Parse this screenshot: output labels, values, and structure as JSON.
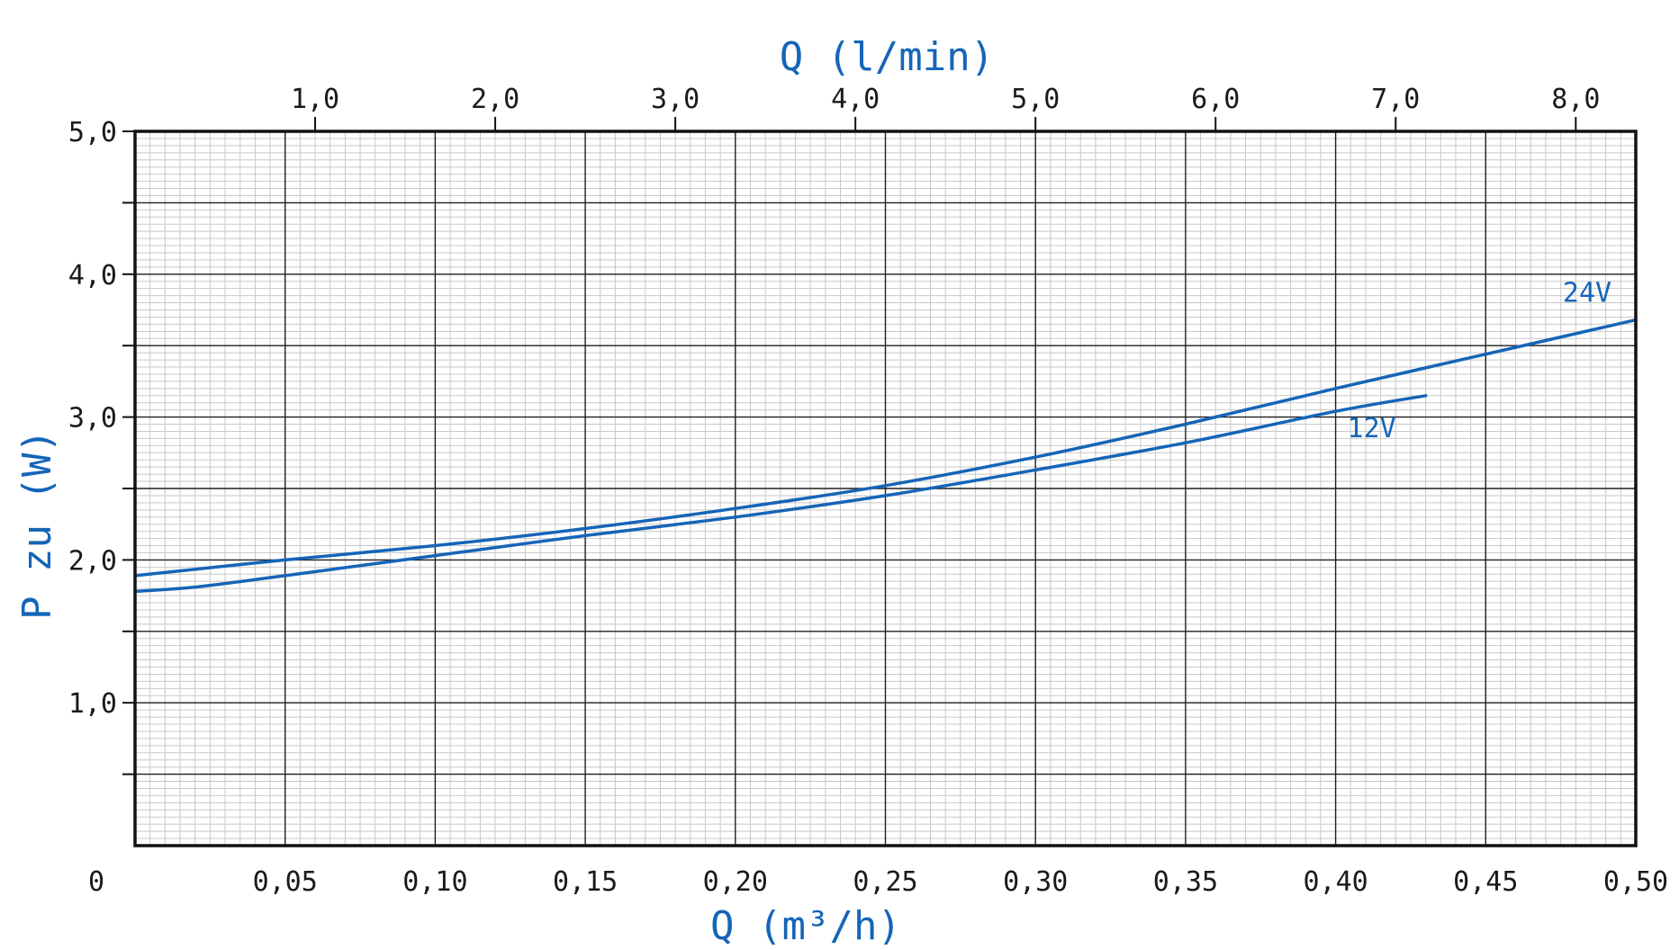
{
  "colors": {
    "accent": "#1565b8",
    "grid_major": "#1e1e1e",
    "grid_minor": "#c8c8c8"
  },
  "chart_data": {
    "type": "line",
    "title": "",
    "xlabel": "Q (m³/h)",
    "xlabel_top": "Q (l/min)",
    "ylabel": "P zu (W)",
    "xlim": [
      0,
      0.5
    ],
    "ylim": [
      0,
      5.0
    ],
    "grid": true,
    "x_ticks": [
      "0",
      "0,05",
      "0,10",
      "0,15",
      "0,20",
      "0,25",
      "0,30",
      "0,35",
      "0,40",
      "0,45",
      "0,50"
    ],
    "x_tick_values": [
      0,
      0.05,
      0.1,
      0.15,
      0.2,
      0.25,
      0.3,
      0.35,
      0.4,
      0.45,
      0.5
    ],
    "x_top_ticks": [
      "1,0",
      "2,0",
      "3,0",
      "4,0",
      "5,0",
      "6,0",
      "7,0",
      "8,0"
    ],
    "x_top_tick_values": [
      1,
      2,
      3,
      4,
      5,
      6,
      7,
      8
    ],
    "y_ticks": [
      "1,0",
      "2,0",
      "3,0",
      "4,0",
      "5,0"
    ],
    "y_tick_values": [
      1,
      2,
      3,
      4,
      5
    ],
    "series": [
      {
        "name": "24V",
        "x": [
          0,
          0.05,
          0.1,
          0.15,
          0.2,
          0.25,
          0.3,
          0.35,
          0.4,
          0.45,
          0.5
        ],
        "y": [
          1.89,
          2.0,
          2.1,
          2.22,
          2.36,
          2.52,
          2.72,
          2.95,
          3.2,
          3.44,
          3.68
        ]
      },
      {
        "name": "12V",
        "x": [
          0,
          0.02,
          0.05,
          0.1,
          0.15,
          0.2,
          0.25,
          0.3,
          0.35,
          0.4,
          0.43
        ],
        "y": [
          1.78,
          1.81,
          1.89,
          2.03,
          2.17,
          2.3,
          2.45,
          2.63,
          2.82,
          3.04,
          3.15
        ]
      }
    ]
  }
}
